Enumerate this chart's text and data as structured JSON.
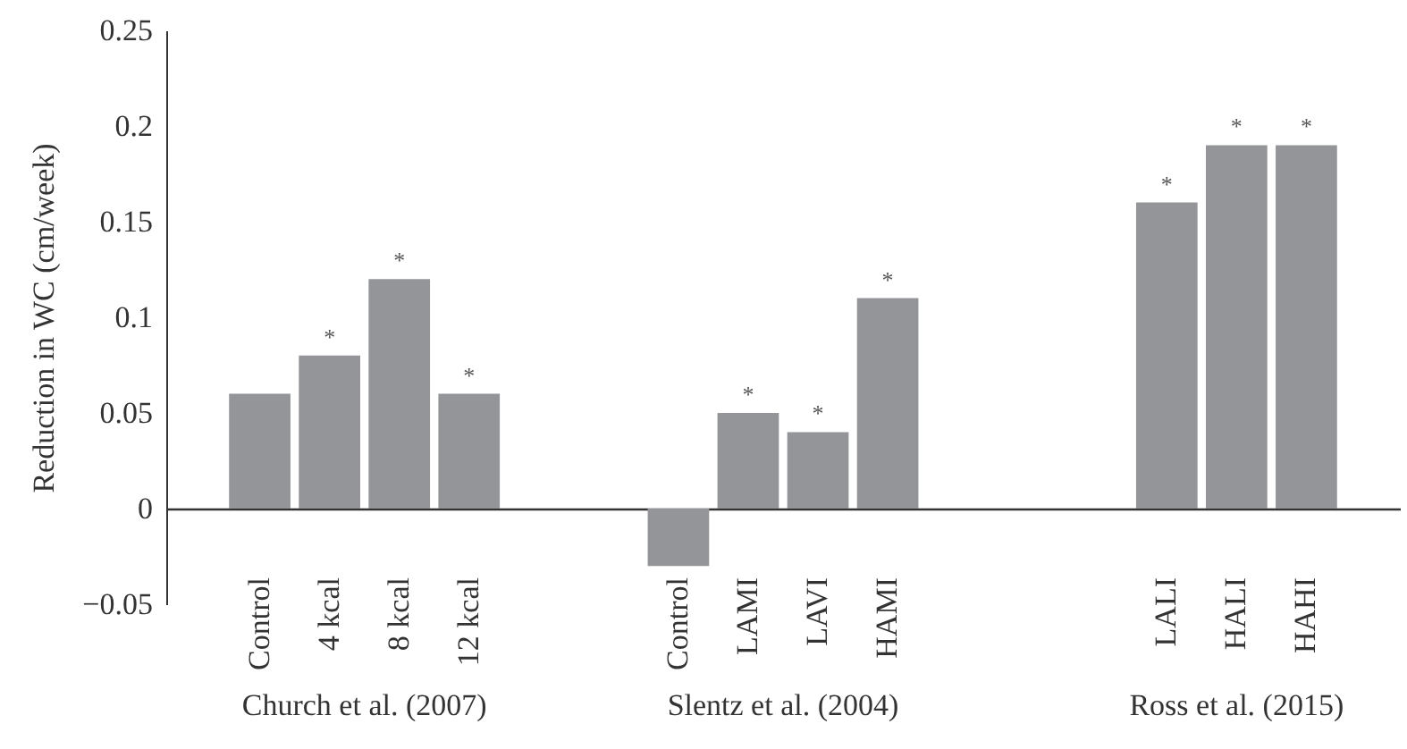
{
  "chart_data": {
    "type": "bar",
    "ylabel": "Reduction in WC (cm/week)",
    "categories": [
      "Control",
      "4 kcal",
      "8 kcal",
      "12 kcal",
      null,
      null,
      "Control",
      "LAMI",
      "LAVI",
      "HAMI",
      null,
      null,
      null,
      "LALI",
      "HALI",
      "HAHI"
    ],
    "values": [
      0.06,
      0.08,
      0.12,
      0.06,
      null,
      null,
      -0.03,
      0.05,
      0.04,
      0.11,
      null,
      null,
      null,
      0.16,
      0.19,
      0.19
    ],
    "value_labels": [
      null,
      "*",
      "*",
      "*",
      null,
      null,
      null,
      "*",
      "*",
      "*",
      null,
      null,
      null,
      "*",
      "*",
      "*"
    ],
    "color": "#939598",
    "ylim": [
      -0.05,
      0.25
    ],
    "yticks": [
      {
        "value": -0.05,
        "label": "−0.05"
      },
      0,
      0.05,
      0.1,
      0.15,
      0.2,
      0.25
    ],
    "grid": false,
    "annotations": [
      "Church et al. (2007)",
      "Slentz et al. (2004)",
      "Ross et al. (2015)"
    ]
  }
}
